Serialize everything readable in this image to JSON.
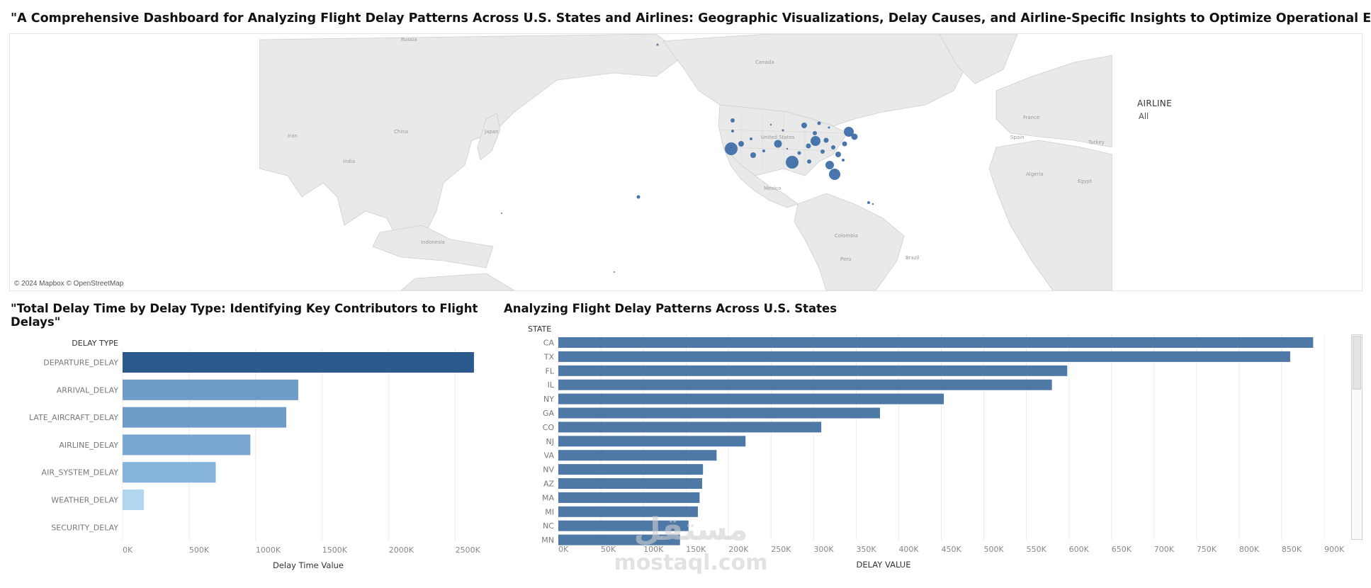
{
  "dashboard": {
    "title": "\"A Comprehensive Dashboard for Analyzing Flight Delay Patterns Across U.S. States and Airlines: Geographic Visualizations, Delay Causes, and Airline-Specific Insights to Optimize Operational Efficiency\""
  },
  "map": {
    "attribution": "© 2024 Mapbox © OpenStreetMap",
    "place_labels": [
      "Russia",
      "Canada",
      "United States",
      "China",
      "Japan",
      "Iran",
      "India",
      "Indonesia",
      "Mexico",
      "Colombia",
      "Peru",
      "Brazil",
      "France",
      "Spain",
      "Turkey",
      "Algeria",
      "Egypt"
    ],
    "marker_color": "#3f6fa8",
    "land_color": "#e9e9e9"
  },
  "filter": {
    "title": "AIRLINE",
    "value": "All"
  },
  "delay_type_panel": {
    "title": "\"Total Delay Time by Delay Type: Identifying Key Contributors to Flight Delays\""
  },
  "state_panel": {
    "title": "Analyzing Flight Delay Patterns Across U.S. States"
  },
  "watermark": {
    "text_ar": "مستقل",
    "text_en": "mostaql.com"
  },
  "chart_data": [
    {
      "type": "bar",
      "orientation": "horizontal",
      "title": "\"Total Delay Time by Delay Type: Identifying Key Contributors to Flight Delays\"",
      "ylabel": "DELAY TYPE",
      "xlabel": "Delay Time Value",
      "categories": [
        "DEPARTURE_DELAY",
        "ARRIVAL_DELAY",
        "LATE_AIRCRAFT_DELAY",
        "AIRLINE_DELAY",
        "AIR_SYSTEM_DELAY",
        "WEATHER_DELAY",
        "SECURITY_DELAY"
      ],
      "values": [
        2640000,
        1320000,
        1230000,
        960000,
        700000,
        160000,
        0
      ],
      "colors": [
        "#2c5a8c",
        "#6e9bc7",
        "#6e9bc7",
        "#7aa7d2",
        "#86b3dc",
        "#b2d6ef",
        "#c6e2f5"
      ],
      "xticks": [
        "0K",
        "500K",
        "1000K",
        "1500K",
        "2000K",
        "2500K"
      ],
      "xlim": [
        0,
        2800000
      ],
      "grid": true
    },
    {
      "type": "bar",
      "orientation": "horizontal",
      "title": "Analyzing Flight Delay Patterns Across U.S. States",
      "ylabel": "STATE",
      "xlabel": "DELAY VALUE",
      "categories": [
        "CA",
        "TX",
        "FL",
        "IL",
        "NY",
        "GA",
        "CO",
        "NJ",
        "VA",
        "NV",
        "AZ",
        "MA",
        "MI",
        "NC",
        "MN"
      ],
      "values": [
        887000,
        860000,
        598000,
        580000,
        453000,
        378000,
        309000,
        220000,
        186000,
        170000,
        169000,
        166000,
        164000,
        153000,
        143000
      ],
      "color": "#4e79a7",
      "xticks": [
        "0K",
        "50K",
        "100K",
        "150K",
        "200K",
        "250K",
        "300K",
        "350K",
        "400K",
        "450K",
        "500K",
        "550K",
        "600K",
        "650K",
        "700K",
        "750K",
        "800K",
        "850K",
        "900K"
      ],
      "xlim": [
        0,
        910000
      ],
      "grid": true,
      "scrollable": true
    }
  ]
}
